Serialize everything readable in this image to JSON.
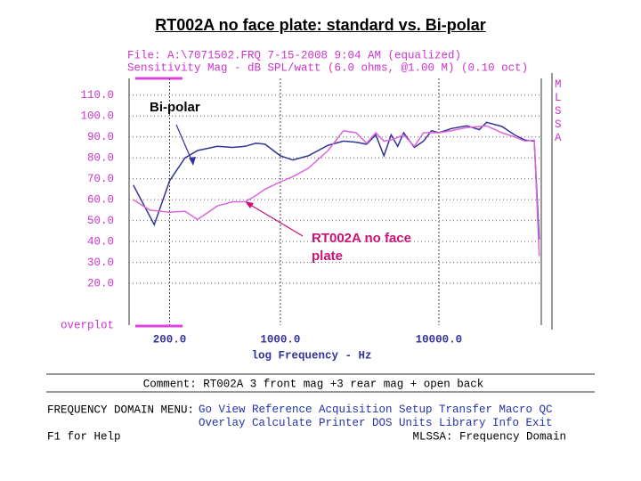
{
  "chart_data": {
    "type": "line",
    "title": "RT002A no face plate:  standard vs. Bi-polar",
    "file_line": "File: A:\\7071502.FRQ 7-15-2008 9:04 AM (equalized)",
    "subtitle": "Sensitivity Mag - dB SPL/watt (6.0 ohms, @1.00 M) (0.10 oct)",
    "side_label": "MLSSA",
    "corner_label": "overplot",
    "x_label": "log Frequency - Hz",
    "log_x": true,
    "grid": true,
    "xlim": [
      111,
      44300
    ],
    "ylim": [
      0,
      118
    ],
    "xticks": [
      {
        "value": 200,
        "label": "200.0"
      },
      {
        "value": 1000,
        "label": "1000.0"
      },
      {
        "value": 10000,
        "label": "10000.0"
      }
    ],
    "yticks": [
      {
        "value": 20,
        "label": "20.0"
      },
      {
        "value": 30,
        "label": "30.0"
      },
      {
        "value": 40,
        "label": "40.0"
      },
      {
        "value": 50,
        "label": "50.0"
      },
      {
        "value": 60,
        "label": "60.0"
      },
      {
        "value": 70,
        "label": "70.0"
      },
      {
        "value": 80,
        "label": "80.0"
      },
      {
        "value": 90,
        "label": "90.0"
      },
      {
        "value": 100,
        "label": "100.0"
      },
      {
        "value": 110,
        "label": "110.0"
      }
    ],
    "series": [
      {
        "name": "Bi-polar",
        "color": "#333399",
        "x": [
          118,
          160,
          200,
          250,
          300,
          400,
          500,
          600,
          700,
          800,
          1000,
          1200,
          1500,
          2000,
          2500,
          3000,
          3500,
          4000,
          4500,
          5000,
          5500,
          6000,
          7000,
          8000,
          9000,
          10000,
          12000,
          15000,
          18000,
          20000,
          25000,
          30000,
          35000,
          40000,
          43000
        ],
        "values": [
          67,
          48,
          69,
          80,
          83.5,
          85.5,
          85,
          85.5,
          87,
          86.5,
          81,
          79,
          81,
          86,
          88,
          87.5,
          86.5,
          91,
          81,
          91,
          85.5,
          92,
          85,
          88,
          93,
          92,
          94,
          95.3,
          93.5,
          97,
          95,
          91,
          88.5,
          88,
          41
        ]
      },
      {
        "name": "RT002A no face plate",
        "color": "#dd66dd",
        "x": [
          118,
          150,
          200,
          250,
          300,
          400,
          500,
          600,
          700,
          800,
          1000,
          1200,
          1500,
          2000,
          2500,
          3000,
          3500,
          4000,
          4500,
          5000,
          6000,
          7000,
          8000,
          10000,
          12000,
          15000,
          20000,
          25000,
          30000,
          35000,
          40000,
          43000
        ],
        "values": [
          60,
          55,
          54,
          54.5,
          50.5,
          57,
          59,
          59,
          62,
          65,
          68.5,
          71,
          75,
          83.5,
          93,
          92,
          87,
          92,
          88,
          88.5,
          91,
          85.5,
          92,
          92,
          93,
          94.5,
          95.3,
          92,
          90,
          88,
          88.5,
          33
        ]
      }
    ]
  },
  "comment": "Comment: RT002A  3 front mag +3 rear mag +  open back",
  "menu_label": "FREQUENCY DOMAIN MENU:",
  "menu": [
    [
      "Go",
      "View",
      "Reference",
      "Acquisition",
      "Setup",
      "Transfer",
      "Macro",
      "QC"
    ],
    [
      "Overlay",
      "Calculate",
      "Printer",
      "DOS",
      "Units",
      "Library",
      "Info",
      "Exit"
    ]
  ],
  "help": "F1 for Help",
  "status": "MLSSA: Frequency Domain"
}
